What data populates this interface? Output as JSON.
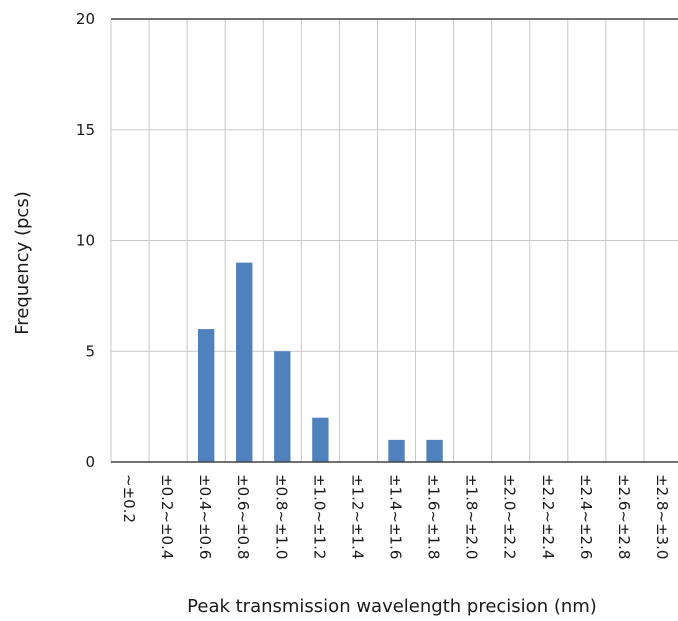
{
  "chart_data": {
    "type": "bar",
    "title": "",
    "xlabel": "Peak transmission wavelength precision (nm)",
    "ylabel": "Frequency (pcs)",
    "categories": [
      "~±0.2",
      "±0.2~±0.4",
      "±0.4~±0.6",
      "±0.6~±0.8",
      "±0.8~±1.0",
      "±1.0~±1.2",
      "±1.2~±1.4",
      "±1.4~±1.6",
      "±1.6~±1.8",
      "±1.8~±2.0",
      "±2.0~±2.2",
      "±2.2~±2.4",
      "±2.4~±2.6",
      "±2.6~±2.8",
      "±2.8~±3.0"
    ],
    "values": [
      0,
      0,
      6,
      9,
      5,
      2,
      0,
      1,
      1,
      0,
      0,
      0,
      0,
      0,
      0
    ],
    "ylim": [
      0,
      20
    ],
    "yticks": [
      0,
      5,
      10,
      15,
      20
    ],
    "grid": true,
    "legend": "none",
    "bar_color": "#4f81bd"
  }
}
